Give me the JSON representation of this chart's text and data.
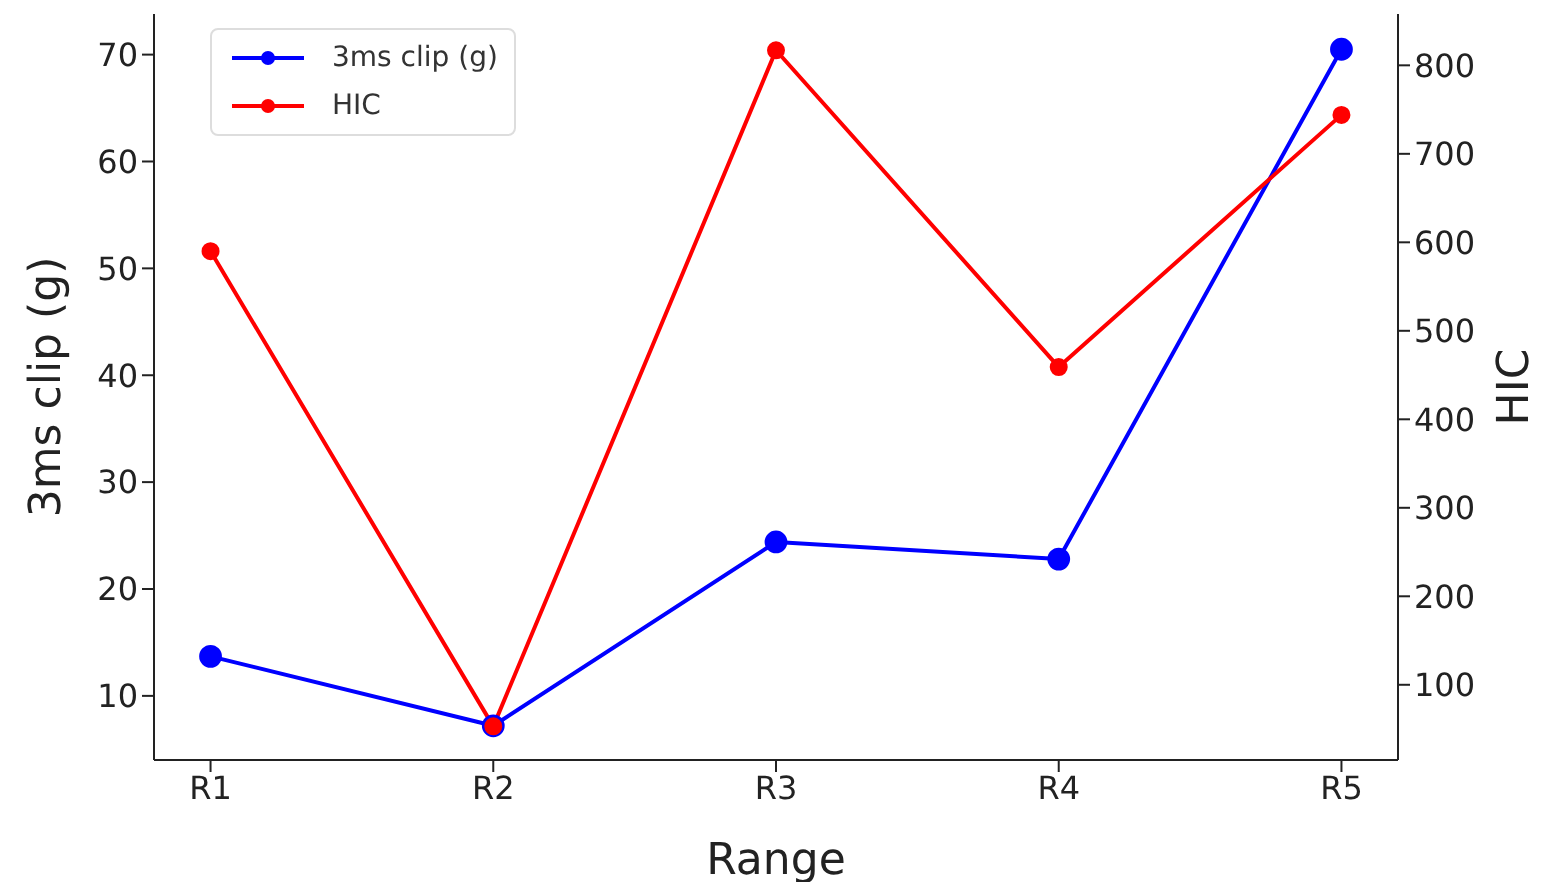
{
  "chart_data": {
    "type": "line",
    "categories": [
      "R1",
      "R2",
      "R3",
      "R4",
      "R5"
    ],
    "xlabel": "Range",
    "ylabel": "3ms clip (g)",
    "y2label": "HIC",
    "series": [
      {
        "name": "3ms clip (g)",
        "color": "#0000ff",
        "values": [
          13.7,
          7.2,
          24.4,
          22.8,
          70.5
        ]
      },
      {
        "name": "HIC",
        "color": "#ff0000",
        "axis": "y2",
        "values": [
          590,
          53,
          817,
          459,
          744
        ]
      }
    ],
    "ylim": [
      4,
      73.8
    ],
    "yticks": [
      10,
      20,
      30,
      40,
      50,
      60,
      70
    ],
    "y2lim": [
      15,
      858
    ],
    "y2ticks": [
      100,
      200,
      300,
      400,
      500,
      600,
      700,
      800
    ],
    "grid": false,
    "legend": "top left",
    "marker": "circle",
    "line_style": "solid"
  }
}
